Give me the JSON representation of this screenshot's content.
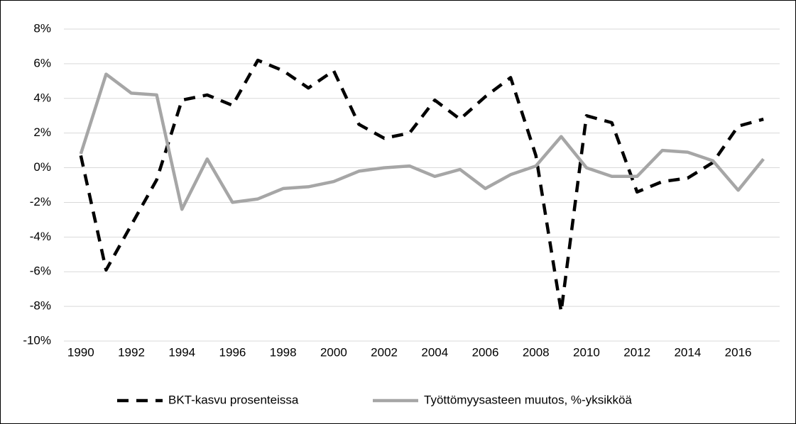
{
  "chart_data": {
    "type": "line",
    "x": [
      1990,
      1991,
      1992,
      1993,
      1994,
      1995,
      1996,
      1997,
      1998,
      1999,
      2000,
      2001,
      2002,
      2003,
      2004,
      2005,
      2006,
      2007,
      2008,
      2009,
      2010,
      2011,
      2012,
      2013,
      2014,
      2015,
      2016,
      2017
    ],
    "series": [
      {
        "name": "BKT-kasvu prosenteissa",
        "color": "#000000",
        "dash": "dashed",
        "values": [
          0.7,
          -5.9,
          -3.3,
          -0.7,
          3.9,
          4.2,
          3.6,
          6.2,
          5.6,
          4.6,
          5.6,
          2.5,
          1.7,
          2.0,
          3.9,
          2.8,
          4.1,
          5.2,
          0.7,
          -8.3,
          3.0,
          2.6,
          -1.4,
          -0.8,
          -0.6,
          0.3,
          2.4,
          2.8
        ]
      },
      {
        "name": "Työttömyysasteen muutos, %-yksikköä",
        "color": "#a6a6a6",
        "dash": "solid",
        "values": [
          0.8,
          5.4,
          4.3,
          4.2,
          -2.4,
          0.5,
          -2.0,
          -1.8,
          -1.2,
          -1.1,
          -0.8,
          -0.2,
          0.0,
          0.1,
          -0.5,
          -0.1,
          -1.2,
          -0.4,
          0.1,
          1.8,
          0.0,
          -0.5,
          -0.5,
          1.0,
          0.9,
          0.4,
          -1.3,
          0.5
        ]
      }
    ],
    "xlim": [
      1989.5,
      2017.5
    ],
    "xticks": [
      1990,
      1992,
      1994,
      1996,
      1998,
      2000,
      2002,
      2004,
      2006,
      2008,
      2010,
      2012,
      2014,
      2016
    ],
    "ylim": [
      -10,
      8
    ],
    "yticks": [
      {
        "value": -10,
        "label": "-10%"
      },
      {
        "value": -8,
        "label": "-8%"
      },
      {
        "value": -6,
        "label": "-6%"
      },
      {
        "value": -4,
        "label": "-4%"
      },
      {
        "value": -2,
        "label": "-2%"
      },
      {
        "value": 0,
        "label": "0%"
      },
      {
        "value": 2,
        "label": "2%"
      },
      {
        "value": 4,
        "label": "4%"
      },
      {
        "value": 6,
        "label": "6%"
      },
      {
        "value": 8,
        "label": "8%"
      }
    ],
    "grid": true,
    "legend": "bottom"
  }
}
